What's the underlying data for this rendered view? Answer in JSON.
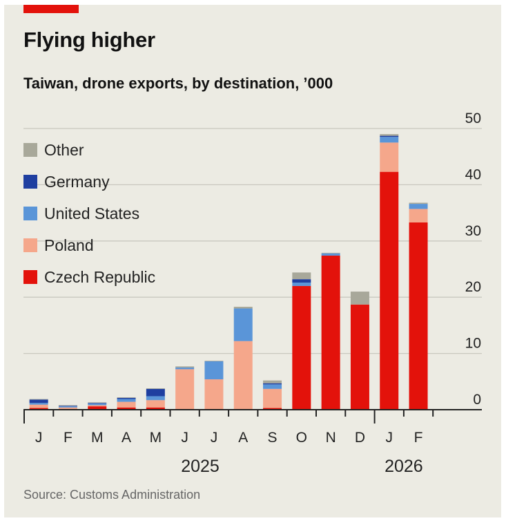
{
  "header": {
    "title": "Flying higher",
    "subtitle": "Taiwan, drone exports, by destination, ’000"
  },
  "footer": {
    "source": "Source: Customs Administration"
  },
  "colors": {
    "Other": "#a8a89a",
    "Germany": "#1f3fa0",
    "United States": "#5a95d8",
    "Poland": "#f5a78b",
    "Czech Republic": "#e3120b",
    "grid": "#c9c8bf",
    "axis": "#222222",
    "accent": "#e3120b"
  },
  "chart_data": {
    "type": "bar",
    "stacked": true,
    "title": "Flying higher",
    "subtitle": "Taiwan, drone exports, by destination, ’000",
    "categories": [
      "J",
      "F",
      "M",
      "A",
      "M",
      "J",
      "J",
      "A",
      "S",
      "O",
      "N",
      "D",
      "J",
      "F"
    ],
    "year_labels": [
      {
        "label": "2025",
        "category_start": 0,
        "category_end": 11
      },
      {
        "label": "2026",
        "category_start": 12,
        "category_end": 13
      }
    ],
    "ylim": [
      0,
      50
    ],
    "yticks": [
      0,
      10,
      20,
      30,
      40,
      50
    ],
    "grid": true,
    "legend_position": "top-left",
    "legend_order": [
      "Other",
      "Germany",
      "United States",
      "Poland",
      "Czech Republic"
    ],
    "series": [
      {
        "name": "Czech Republic",
        "values": [
          0.3,
          0.1,
          0.6,
          0.4,
          0.4,
          0,
          0,
          0,
          0.3,
          22,
          27.4,
          18.7,
          42.3,
          33.3
        ]
      },
      {
        "name": "Poland",
        "values": [
          0.6,
          0.3,
          0.2,
          1.0,
          1.3,
          7.2,
          5.4,
          12.2,
          3.4,
          0,
          0,
          0,
          5.2,
          2.4
        ]
      },
      {
        "name": "United States",
        "values": [
          0.3,
          0.2,
          0.3,
          0.5,
          0.7,
          0.3,
          3.2,
          5.8,
          0.8,
          0.6,
          0.4,
          0,
          1.0,
          0.9
        ]
      },
      {
        "name": "Germany",
        "values": [
          0.6,
          0.1,
          0.1,
          0.2,
          1.3,
          0,
          0,
          0,
          0.2,
          0.6,
          0,
          0,
          0.2,
          0
        ]
      },
      {
        "name": "Other",
        "values": [
          0.1,
          0.1,
          0.1,
          0.1,
          0.1,
          0.2,
          0.1,
          0.3,
          0.5,
          1.2,
          0.1,
          2.3,
          0.3,
          0.2
        ]
      }
    ],
    "source": "Source: Customs Administration"
  }
}
